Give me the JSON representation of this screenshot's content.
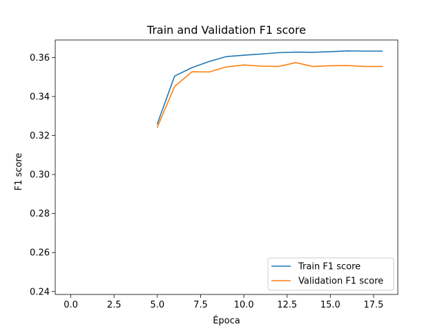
{
  "chart_data": {
    "type": "line",
    "title": "Train and Validation F1 score",
    "xlabel": "Época",
    "ylabel": "F1 score",
    "xlim": [
      -0.9,
      18.9
    ],
    "ylim": [
      0.2385,
      0.369
    ],
    "xticks": [
      0.0,
      2.5,
      5.0,
      7.5,
      10.0,
      12.5,
      15.0,
      17.5
    ],
    "xtick_labels": [
      "0.0",
      "2.5",
      "5.0",
      "7.5",
      "10.0",
      "12.5",
      "15.0",
      "17.5"
    ],
    "yticks": [
      0.24,
      0.26,
      0.28,
      0.3,
      0.32,
      0.34,
      0.36
    ],
    "ytick_labels": [
      "0.24",
      "0.26",
      "0.28",
      "0.30",
      "0.32",
      "0.34",
      "0.36"
    ],
    "grid": false,
    "legend_position": "bottom-right",
    "x": [
      5,
      6,
      7,
      8,
      9,
      10,
      11,
      12,
      13,
      14,
      15,
      16,
      17,
      18
    ],
    "series": [
      {
        "name": "Train F1 score",
        "color": "#1f77b4",
        "values": [
          0.326,
          0.3505,
          0.3548,
          0.358,
          0.3605,
          0.3612,
          0.3618,
          0.3625,
          0.3628,
          0.3627,
          0.363,
          0.3634,
          0.3633,
          0.3633
        ]
      },
      {
        "name": "Validation F1 score",
        "color": "#ff7f0e",
        "values": [
          0.3243,
          0.3452,
          0.3527,
          0.3526,
          0.3552,
          0.3562,
          0.3556,
          0.3554,
          0.3574,
          0.3554,
          0.3558,
          0.3559,
          0.3554,
          0.3554
        ]
      }
    ]
  }
}
